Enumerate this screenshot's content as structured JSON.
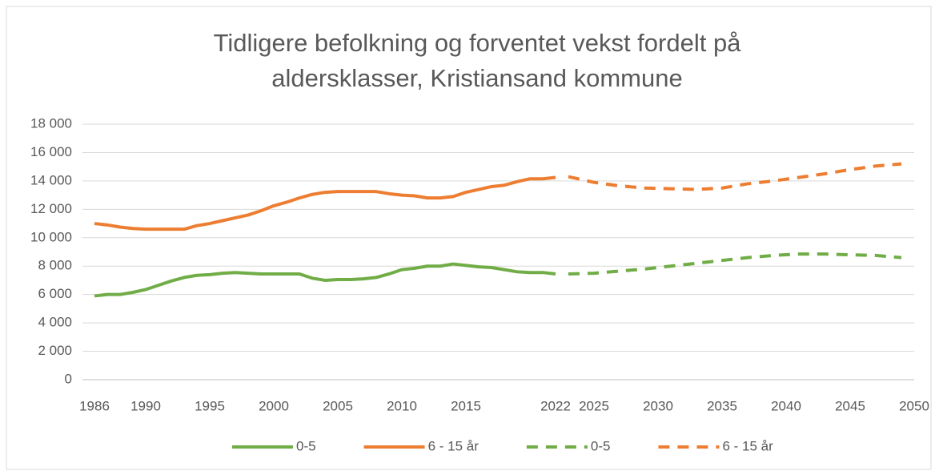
{
  "chart_data": {
    "type": "line",
    "title": [
      "Tidligere befolkning og forventet vekst fordelt på",
      "aldersklasser, Kristiansand kommune"
    ],
    "xlim": [
      1986,
      2050
    ],
    "xticks": [
      1986,
      1990,
      1995,
      2000,
      2005,
      2010,
      2015,
      2022,
      2025,
      2030,
      2035,
      2040,
      2045,
      2050
    ],
    "ylim": [
      0,
      18000
    ],
    "yticks": [
      0,
      {
        "value": 2000,
        "label": "2 000"
      },
      {
        "value": 4000,
        "label": "4 000"
      },
      {
        "value": 6000,
        "label": "6 000"
      },
      {
        "value": 8000,
        "label": "8 000"
      },
      {
        "value": 10000,
        "label": "10 000"
      },
      {
        "value": 12000,
        "label": "12 000"
      },
      {
        "value": 14000,
        "label": "14 000"
      },
      {
        "value": 16000,
        "label": "16 000"
      },
      {
        "value": 18000,
        "label": "18 000"
      }
    ],
    "grid": true,
    "legend": "bottom",
    "series": [
      {
        "name": "0-5",
        "color": "#70ad47",
        "dashed": false,
        "x": [
          1986,
          1987,
          1988,
          1989,
          1990,
          1991,
          1992,
          1993,
          1994,
          1995,
          1996,
          1997,
          1998,
          1999,
          2000,
          2001,
          2002,
          2003,
          2004,
          2005,
          2006,
          2007,
          2008,
          2009,
          2010,
          2011,
          2012,
          2013,
          2014,
          2015,
          2016,
          2017,
          2018,
          2019,
          2020,
          2021,
          2022
        ],
        "values": [
          5900,
          6000,
          6000,
          6150,
          6350,
          6650,
          6950,
          7200,
          7350,
          7400,
          7500,
          7550,
          7500,
          7450,
          7450,
          7450,
          7450,
          7150,
          7000,
          7050,
          7050,
          7100,
          7200,
          7450,
          7750,
          7850,
          8000,
          8000,
          8150,
          8050,
          7950,
          7900,
          7750,
          7600,
          7550,
          7550,
          7450
        ]
      },
      {
        "name": "6 - 15 år",
        "color": "#ed7d31",
        "dashed": false,
        "x": [
          1986,
          1987,
          1988,
          1989,
          1990,
          1991,
          1992,
          1993,
          1994,
          1995,
          1996,
          1997,
          1998,
          1999,
          2000,
          2001,
          2002,
          2003,
          2004,
          2005,
          2006,
          2007,
          2008,
          2009,
          2010,
          2011,
          2012,
          2013,
          2014,
          2015,
          2016,
          2017,
          2018,
          2019,
          2020,
          2021,
          2022
        ],
        "values": [
          11000,
          10900,
          10750,
          10650,
          10600,
          10600,
          10600,
          10600,
          10850,
          11000,
          11200,
          11400,
          11600,
          11900,
          12250,
          12500,
          12800,
          13050,
          13200,
          13250,
          13250,
          13250,
          13250,
          13100,
          13000,
          12950,
          12800,
          12800,
          12900,
          13200,
          13400,
          13600,
          13700,
          13950,
          14150,
          14150,
          14250
        ]
      },
      {
        "name": "0-5",
        "color": "#70ad47",
        "dashed": true,
        "x": [
          2023,
          2025,
          2027,
          2029,
          2031,
          2033,
          2035,
          2037,
          2039,
          2041,
          2043,
          2045,
          2047,
          2049
        ],
        "values": [
          7450,
          7500,
          7650,
          7800,
          8000,
          8200,
          8400,
          8600,
          8750,
          8850,
          8850,
          8800,
          8750,
          8600
        ]
      },
      {
        "name": "6 - 15 år",
        "color": "#ed7d31",
        "dashed": true,
        "x": [
          2023,
          2025,
          2027,
          2029,
          2031,
          2033,
          2035,
          2037,
          2039,
          2041,
          2043,
          2045,
          2047,
          2049
        ],
        "values": [
          14300,
          13900,
          13650,
          13500,
          13450,
          13400,
          13500,
          13800,
          14000,
          14250,
          14500,
          14800,
          15050,
          15200
        ]
      }
    ]
  }
}
